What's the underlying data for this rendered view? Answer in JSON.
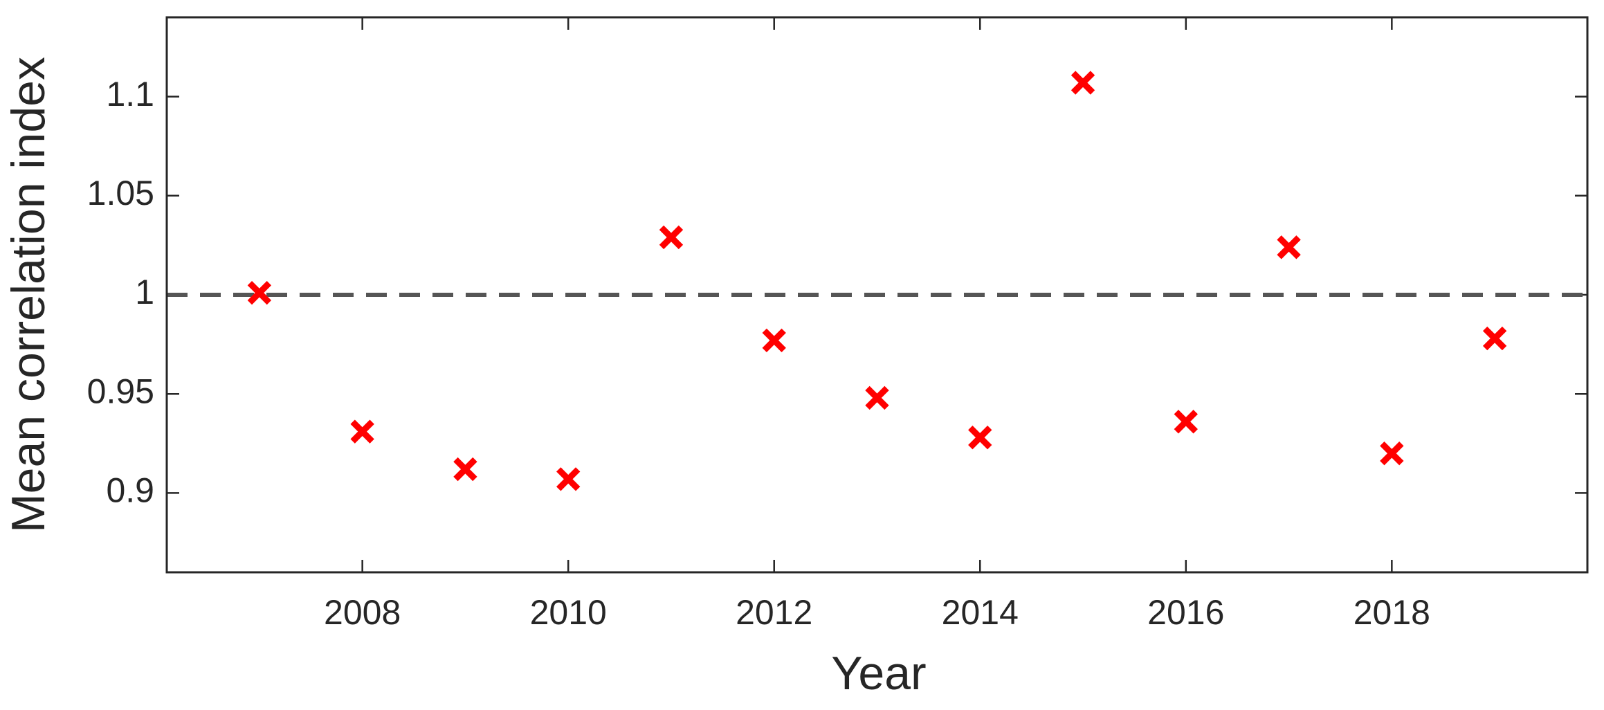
{
  "chart_data": {
    "type": "scatter",
    "xlabel": "Year",
    "ylabel": "Mean correlation index",
    "x": [
      2007,
      2008,
      2009,
      2010,
      2011,
      2012,
      2013,
      2014,
      2015,
      2016,
      2017,
      2018,
      2019
    ],
    "values": [
      1.001,
      0.931,
      0.912,
      0.907,
      1.029,
      0.977,
      0.948,
      0.928,
      1.107,
      0.936,
      1.024,
      0.92,
      0.978
    ],
    "color": "#ff0000",
    "reference_line": 1,
    "reference_color": "#555555",
    "xlim": [
      2006.1,
      2019.9
    ],
    "xticks": [
      2008,
      2010,
      2012,
      2014,
      2016,
      2018
    ],
    "ylim": [
      0.86,
      1.14
    ],
    "yticks": [
      {
        "value": 0.9,
        "label": "0.9"
      },
      0.95,
      1,
      1.05,
      {
        "value": 1.1,
        "label": "1.1"
      }
    ],
    "grid": false
  }
}
